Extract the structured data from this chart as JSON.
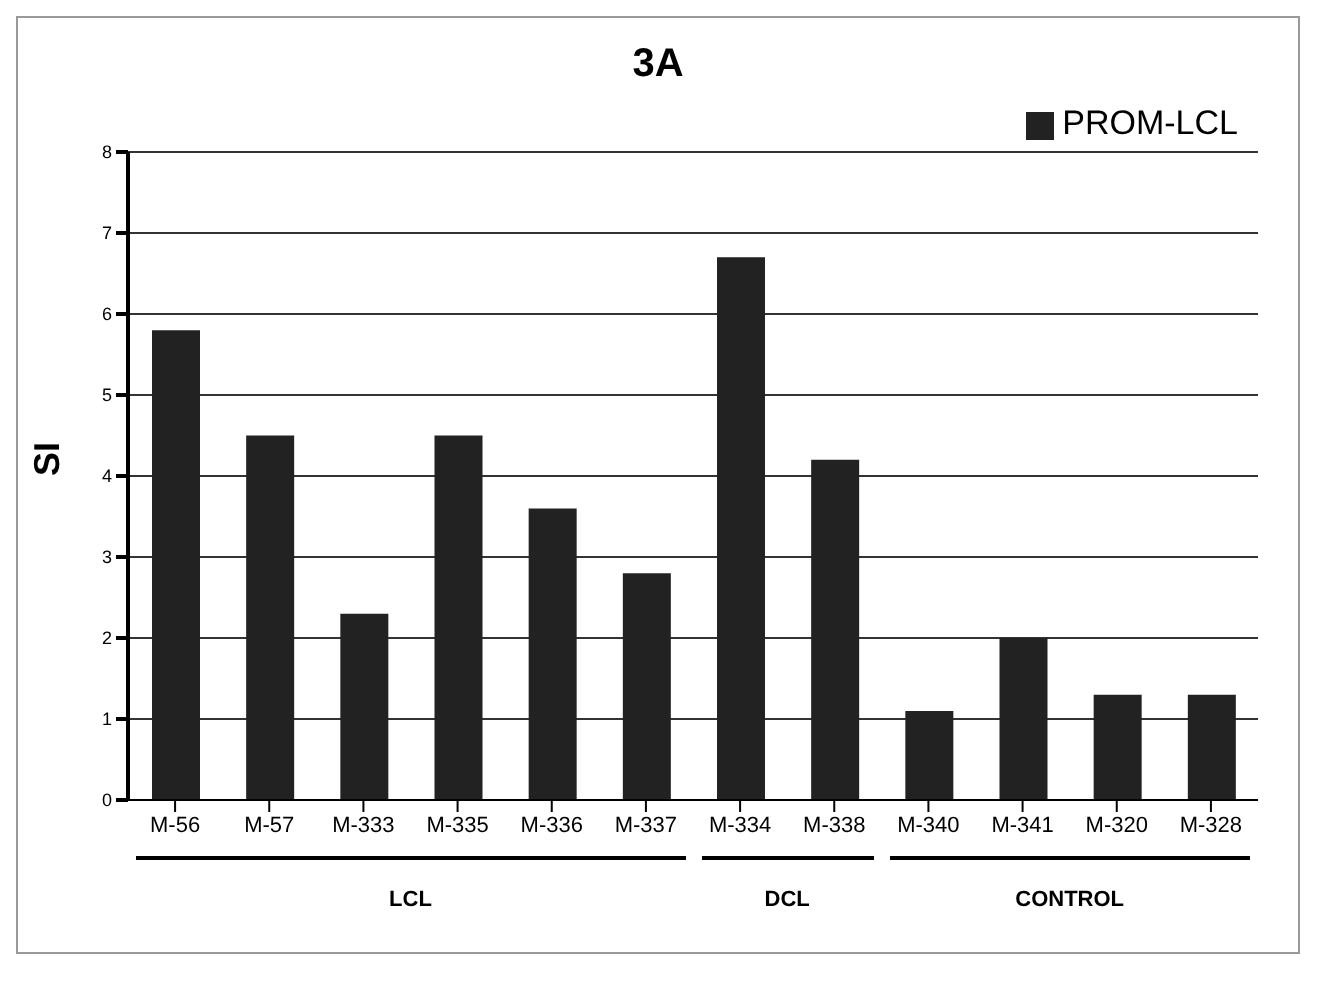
{
  "chart_data": {
    "type": "bar",
    "title": "3A",
    "ylabel": "SI",
    "categories": [
      "M-56",
      "M-57",
      "M-333",
      "M-335",
      "M-336",
      "M-337",
      "M-334",
      "M-338",
      "M-340",
      "M-341",
      "M-320",
      "M-328"
    ],
    "series": [
      {
        "name": "PROM-LCL",
        "color": "#222222",
        "values": [
          5.8,
          4.5,
          2.3,
          4.5,
          3.6,
          2.8,
          6.7,
          4.2,
          1.1,
          2.0,
          1.3,
          1.3
        ]
      }
    ],
    "ylim": [
      0,
      8
    ],
    "yticks": [
      0,
      1,
      2,
      3,
      4,
      5,
      6,
      7,
      8
    ],
    "grid": "y",
    "legend": "top right",
    "annotations": [
      "LCL",
      "DCL",
      "CONTROL"
    ]
  }
}
